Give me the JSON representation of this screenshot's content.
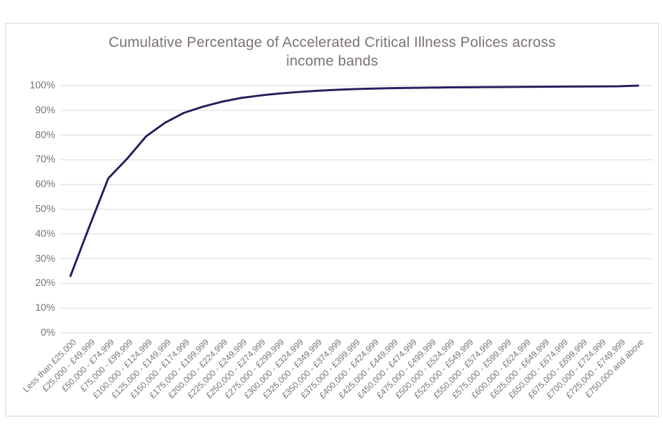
{
  "page": {
    "background_color": "#ffffff",
    "frame_border_color": "#d6d3d6"
  },
  "chart_data": {
    "type": "line",
    "title": "Cumulative Percentage of Accelerated Critical Illness Polices across income bands",
    "series": [
      {
        "name": "Cumulative percentage",
        "values": [
          23,
          43,
          62.5,
          70.5,
          79.5,
          85,
          89,
          91.5,
          93.5,
          95,
          96,
          96.8,
          97.4,
          97.9,
          98.3,
          98.6,
          98.8,
          99.0,
          99.1,
          99.2,
          99.3,
          99.35,
          99.4,
          99.45,
          99.5,
          99.55,
          99.6,
          99.65,
          99.7,
          99.75,
          100
        ]
      }
    ],
    "categories": [
      "Less than £25,000",
      "£25,000 - £49,999",
      "£50,000 - £74,999",
      "£75,000 - £99,999",
      "£100,000 - £124,999",
      "£125,000 - £149,999",
      "£150,000 - £174,999",
      "£175,000 - £199,999",
      "£200,000 - £224,999",
      "£225,000 - £249,999",
      "£250,000 - £274,999",
      "£275,000 - £299,999",
      "£300,000 - £324,999",
      "£325,000 - £349,999",
      "£350,000 - £374,999",
      "£375,000 - £399,999",
      "£400,000 - £424,999",
      "£425,000 - £449,999",
      "£450,000 - £474,999",
      "£475,000 - £499,999",
      "£500,000 - £524,999",
      "£525,000 - £549,999",
      "£550,000 - £574,999",
      "£575,000 - £599,999",
      "£600,000 - £624,999",
      "£625,000 - £649,999",
      "£650,000 - £674,999",
      "£675,000 - £699,999",
      "£700,000 - £724,999",
      "£725,000 - £749,999",
      "£750,000 and above"
    ],
    "y_ticks": [
      "0%",
      "10%",
      "20%",
      "30%",
      "40%",
      "50%",
      "60%",
      "70%",
      "80%",
      "90%",
      "100%"
    ],
    "ylim": [
      0,
      100
    ],
    "grid": "horizontal",
    "legend": "none",
    "line_color": "#2d1b5e",
    "gridline_color": "#d9d9d9",
    "title_color": "#7c7272",
    "axis_text_color": "#7a7575"
  }
}
